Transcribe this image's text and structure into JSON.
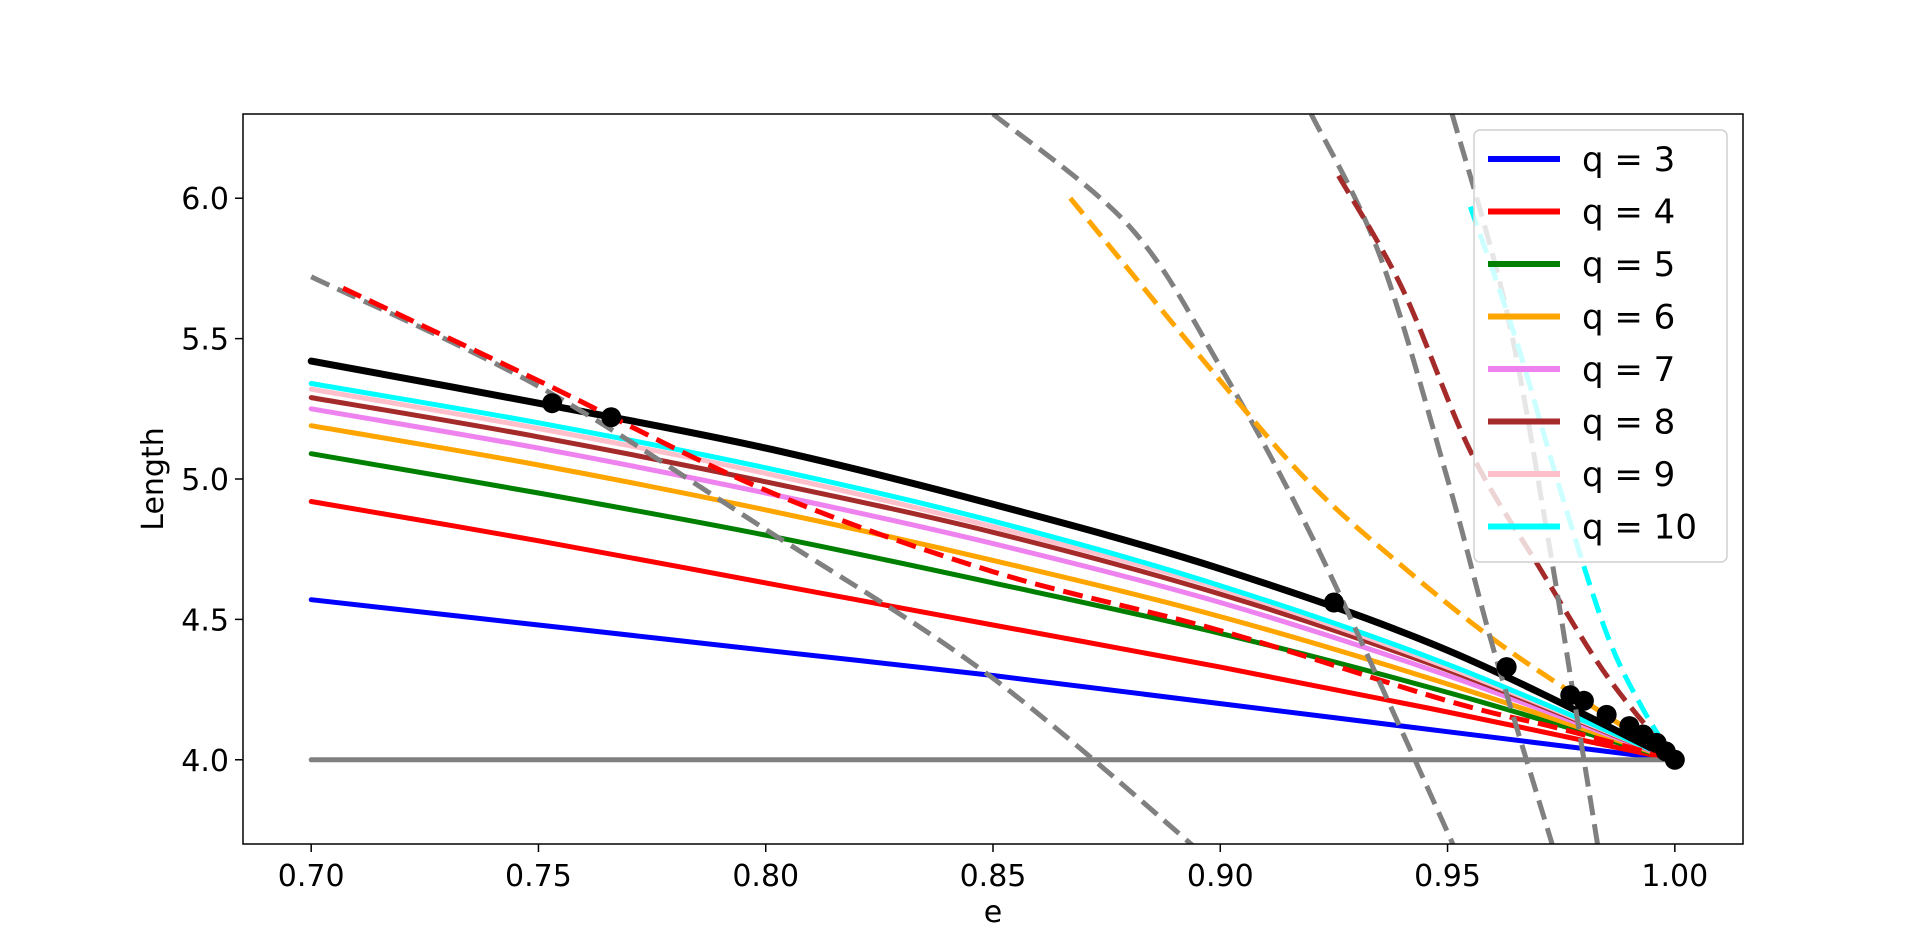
{
  "chart_data": {
    "type": "line",
    "xlabel": "e",
    "ylabel": "Length",
    "xlim": [
      0.685,
      1.015
    ],
    "ylim": [
      3.7,
      6.3
    ],
    "xticks": [
      "0.70",
      "0.75",
      "0.80",
      "0.85",
      "0.90",
      "0.95",
      "1.00"
    ],
    "yticks": [
      "4.0",
      "4.5",
      "5.0",
      "5.5",
      "6.0"
    ],
    "grid": false,
    "legend_position": "top-right",
    "series": [
      {
        "name": "q = 3",
        "color": "#0000ff",
        "style": "solid",
        "x": [
          0.7,
          0.75,
          0.8,
          0.85,
          0.9,
          0.95,
          1.0
        ],
        "y": [
          4.57,
          4.48,
          4.39,
          4.3,
          4.2,
          4.1,
          4.0
        ]
      },
      {
        "name": "q = 4",
        "color": "#ff0000",
        "style": "solid",
        "x": [
          0.7,
          0.75,
          0.8,
          0.85,
          0.9,
          0.95,
          1.0
        ],
        "y": [
          4.92,
          4.78,
          4.63,
          4.48,
          4.33,
          4.17,
          4.0
        ]
      },
      {
        "name": "q = 5",
        "color": "#008000",
        "style": "solid",
        "x": [
          0.7,
          0.75,
          0.8,
          0.85,
          0.9,
          0.95,
          1.0
        ],
        "y": [
          5.09,
          4.95,
          4.8,
          4.63,
          4.45,
          4.24,
          4.0
        ]
      },
      {
        "name": "q = 6",
        "color": "#ffa500",
        "style": "solid",
        "x": [
          0.7,
          0.75,
          0.8,
          0.85,
          0.9,
          0.95,
          1.0
        ],
        "y": [
          5.19,
          5.05,
          4.89,
          4.71,
          4.51,
          4.27,
          4.0
        ]
      },
      {
        "name": "q = 7",
        "color": "#ee82ee",
        "style": "solid",
        "x": [
          0.7,
          0.75,
          0.8,
          0.85,
          0.9,
          0.95,
          1.0
        ],
        "y": [
          5.25,
          5.11,
          4.95,
          4.77,
          4.56,
          4.3,
          4.0
        ]
      },
      {
        "name": "q = 8",
        "color": "#a52a2a",
        "style": "solid",
        "x": [
          0.7,
          0.75,
          0.8,
          0.85,
          0.9,
          0.95,
          1.0
        ],
        "y": [
          5.29,
          5.15,
          4.99,
          4.81,
          4.59,
          4.32,
          4.0
        ]
      },
      {
        "name": "q = 9",
        "color": "#ffc0cb",
        "style": "solid",
        "x": [
          0.7,
          0.75,
          0.8,
          0.85,
          0.9,
          0.95,
          1.0
        ],
        "y": [
          5.32,
          5.18,
          5.02,
          4.83,
          4.61,
          4.33,
          4.0
        ]
      },
      {
        "name": "q = 10",
        "color": "#00ffff",
        "style": "solid",
        "x": [
          0.7,
          0.75,
          0.8,
          0.85,
          0.9,
          0.95,
          1.0
        ],
        "y": [
          5.34,
          5.2,
          5.04,
          4.85,
          4.62,
          4.34,
          4.0
        ]
      },
      {
        "color": "#000000",
        "style": "solid",
        "width": 7,
        "x": [
          0.7,
          0.75,
          0.8,
          0.85,
          0.9,
          0.95,
          1.0
        ],
        "y": [
          5.42,
          5.27,
          5.11,
          4.91,
          4.68,
          4.39,
          4.0
        ]
      },
      {
        "color": "#808080",
        "style": "solid",
        "x": [
          0.7,
          1.0
        ],
        "y": [
          4.0,
          4.0
        ]
      },
      {
        "color": "#808080",
        "style": "dashed",
        "x": [
          0.7,
          0.75,
          0.8,
          0.85,
          0.9
        ],
        "y": [
          5.72,
          5.33,
          4.82,
          4.29,
          3.61
        ]
      },
      {
        "color": "#ff0000",
        "style": "dashed",
        "x": [
          0.707,
          0.75,
          0.8,
          0.85,
          0.9,
          0.95,
          0.975,
          1.0
        ],
        "y": [
          5.68,
          5.35,
          4.96,
          4.67,
          4.46,
          4.21,
          4.11,
          4.0
        ]
      },
      {
        "color": "#808080",
        "style": "dashed",
        "x": [
          0.85,
          0.88,
          0.9,
          0.92,
          0.94,
          0.952
        ],
        "y": [
          6.3,
          5.9,
          5.4,
          4.8,
          4.1,
          3.67
        ]
      },
      {
        "color": "#ffa500",
        "style": "dashed",
        "x": [
          0.867,
          0.9,
          0.92,
          0.94,
          0.96,
          0.98,
          1.0
        ],
        "y": [
          6.0,
          5.35,
          4.98,
          4.69,
          4.43,
          4.21,
          4.0
        ]
      },
      {
        "color": "#808080",
        "style": "dashed",
        "x": [
          0.92,
          0.935,
          0.95,
          0.96,
          0.973
        ],
        "y": [
          6.3,
          5.8,
          5.0,
          4.4,
          3.7
        ]
      },
      {
        "color": "#a52a2a",
        "style": "dashed",
        "x": [
          0.926,
          0.94,
          0.955,
          0.97,
          0.985,
          1.0
        ],
        "y": [
          6.08,
          5.68,
          5.1,
          4.69,
          4.3,
          4.0
        ]
      },
      {
        "color": "#808080",
        "style": "dashed",
        "x": [
          0.951,
          0.963,
          0.972,
          0.978,
          0.983
        ],
        "y": [
          6.3,
          5.6,
          4.8,
          4.2,
          3.7
        ]
      },
      {
        "color": "#00ffff",
        "style": "dashed",
        "x": [
          0.955,
          0.965,
          0.975,
          0.985,
          0.993,
          1.0
        ],
        "y": [
          5.97,
          5.5,
          4.95,
          4.45,
          4.18,
          4.0
        ]
      }
    ],
    "markers": {
      "color": "#000000",
      "x": [
        0.753,
        0.766,
        0.925,
        0.963,
        0.977,
        0.98,
        0.985,
        0.99,
        0.993,
        0.996,
        0.998,
        1.0
      ],
      "y": [
        5.27,
        5.22,
        4.56,
        4.33,
        4.23,
        4.21,
        4.16,
        4.12,
        4.09,
        4.06,
        4.03,
        4.0
      ]
    }
  }
}
